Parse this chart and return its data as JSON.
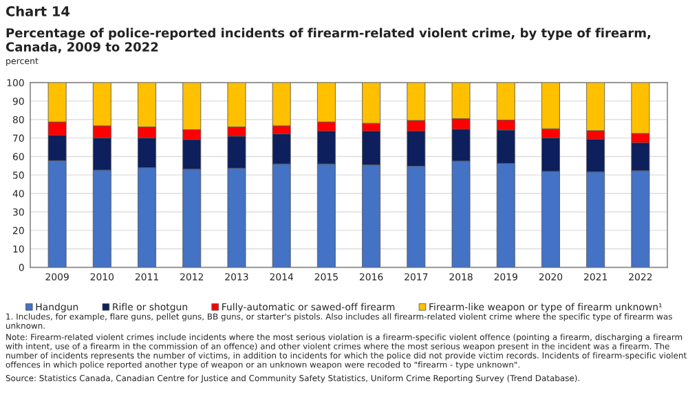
{
  "chart_data": {
    "type": "bar",
    "stacked": true,
    "title": "Chart 14",
    "subtitle": "Percentage of police-reported incidents of firearm-related violent crime, by type of firearm, Canada, 2009 to 2022",
    "ylabel": "percent",
    "categories": [
      "2009",
      "2010",
      "2011",
      "2012",
      "2013",
      "2014",
      "2015",
      "2016",
      "2017",
      "2018",
      "2019",
      "2020",
      "2021",
      "2022"
    ],
    "series": [
      {
        "name": "Handgun",
        "color": "#4472c4",
        "values": [
          57.8,
          52.7,
          54,
          53.2,
          53.7,
          56,
          56,
          55.5,
          54.8,
          57.6,
          56.3,
          52,
          51.7,
          52.4
        ]
      },
      {
        "name": "Rifle or shotgun",
        "color": "#0d1f5c",
        "values": [
          13.7,
          17.3,
          16,
          16,
          17.3,
          16.2,
          17.8,
          18.3,
          19,
          17.2,
          18,
          18,
          17.7,
          15
        ]
      },
      {
        "name": "Fully-automatic or sawed-off firearm",
        "color": "#ff0000",
        "values": [
          7.2,
          6.6,
          6,
          5.3,
          5,
          4.4,
          4.9,
          4.2,
          5.7,
          5.7,
          5.4,
          5,
          4.6,
          5.1
        ]
      },
      {
        "name": "Firearm-like weapon or type of firearm unknown¹",
        "color": "#ffc000",
        "values": [
          21.3,
          23.4,
          24,
          25.5,
          24,
          23.4,
          21.3,
          22,
          20.5,
          19.5,
          20.3,
          25,
          26,
          27.5
        ]
      }
    ],
    "ylim": [
      0,
      100
    ],
    "yticks": [
      0,
      10,
      20,
      30,
      40,
      50,
      60,
      70,
      80,
      90,
      100
    ],
    "grid": "y",
    "legend": "bottom",
    "annotations": [
      "1. Includes, for example, flare guns, pellet guns, BB guns, or starter's pistols. Also includes all firearm-related violent crime where the specific type of firearm was unknown.",
      "Note: Firearm-related violent crimes include incidents where the most serious violation is a firearm-specific violent offence (pointing a firearm, discharging a firearm with intent, use of a firearm in the commission of an offence) and other violent crimes where the most serious weapon present in the incident was a firearm. The number of incidents represents the number of victims, in addition to incidents for which the police did not provide victim records. Incidents of firearm-specific violent offences in which police reported another type of weapon or an unknown weapon were recoded to \"firearm - type unknown\".",
      "Source: Statistics Canada, Canadian Centre for Justice and Community Safety Statistics, Uniform Crime Reporting Survey (Trend Database)."
    ]
  }
}
